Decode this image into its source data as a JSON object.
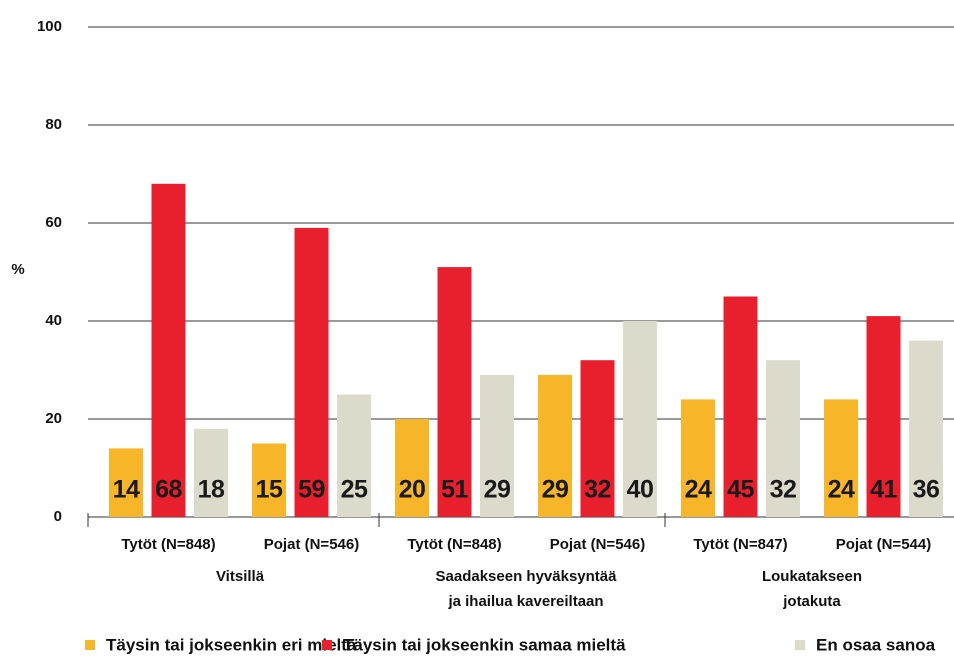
{
  "chart_data": {
    "type": "bar",
    "y_label": "%",
    "groups": [
      {
        "name": [
          "Vitsillä"
        ],
        "categories": [
          "Tytöt (N=848)",
          "Pojat (N=546)"
        ]
      },
      {
        "name": [
          "Saadakseen hyväksyntää",
          "ja ihailua kavereiltaan"
        ],
        "categories": [
          "Tytöt (N=848)",
          "Pojat (N=546)"
        ]
      },
      {
        "name": [
          "Loukatakseen",
          "jotakuta"
        ],
        "categories": [
          "Tytöt (N=847)",
          "Pojat (N=544)"
        ]
      }
    ],
    "series": [
      {
        "name": "Täysin tai jokseenkin eri mieltä",
        "color": "#f7b52a",
        "values": [
          14,
          15,
          20,
          29,
          24,
          24
        ]
      },
      {
        "name": "Täysin tai jokseenkin samaa mieltä",
        "color": "#e8202e",
        "values": [
          68,
          59,
          51,
          32,
          45,
          41
        ]
      },
      {
        "name": "En osaa sanoa",
        "color": "#dcdacb",
        "values": [
          18,
          25,
          29,
          40,
          32,
          36
        ]
      }
    ],
    "ylim": [
      0,
      100
    ],
    "yticks": [
      0,
      20,
      40,
      60,
      80,
      100
    ],
    "grid": true
  }
}
